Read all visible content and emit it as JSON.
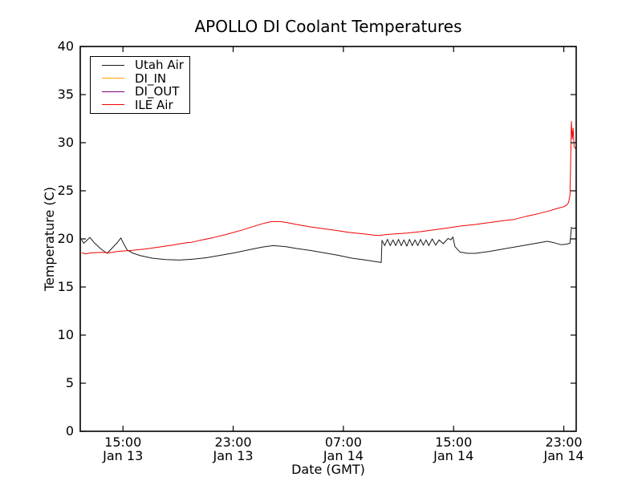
{
  "chart_data": {
    "type": "line",
    "title": "APOLLO DI Coolant Temperatures",
    "xlabel": "Date (GMT)",
    "ylabel": "Temperature (C)",
    "ylim": [
      0,
      40
    ],
    "yticks": [
      0,
      5,
      10,
      15,
      20,
      25,
      30,
      35,
      40
    ],
    "x_unit": "hours since Jan 13 12:00 GMT",
    "xlim": [
      -0.1,
      35.9
    ],
    "xticks": [
      {
        "t": 3,
        "time": "15:00",
        "date": "Jan 13"
      },
      {
        "t": 11,
        "time": "23:00",
        "date": "Jan 13"
      },
      {
        "t": 19,
        "time": "07:00",
        "date": "Jan 14"
      },
      {
        "t": 27,
        "time": "15:00",
        "date": "Jan 14"
      },
      {
        "t": 35,
        "time": "23:00",
        "date": "Jan 14"
      }
    ],
    "grid": false,
    "legend_position": "upper left",
    "series": [
      {
        "name": "Utah Air",
        "color": "#1a1a1a",
        "points": [
          [
            0,
            19.9
          ],
          [
            0.15,
            19.55
          ],
          [
            0.35,
            19.8
          ],
          [
            0.6,
            20.15
          ],
          [
            0.95,
            19.55
          ],
          [
            1.4,
            18.95
          ],
          [
            1.85,
            18.5
          ],
          [
            2.15,
            18.95
          ],
          [
            2.55,
            19.55
          ],
          [
            2.85,
            20.1
          ],
          [
            3.05,
            19.5
          ],
          [
            3.3,
            18.85
          ],
          [
            3.75,
            18.5
          ],
          [
            4.3,
            18.25
          ],
          [
            5.1,
            18.0
          ],
          [
            6.1,
            17.85
          ],
          [
            7.1,
            17.8
          ],
          [
            8.1,
            17.9
          ],
          [
            9.1,
            18.05
          ],
          [
            10.1,
            18.3
          ],
          [
            11.1,
            18.55
          ],
          [
            12.1,
            18.85
          ],
          [
            13.1,
            19.15
          ],
          [
            13.9,
            19.3
          ],
          [
            14.8,
            19.2
          ],
          [
            15.6,
            19.0
          ],
          [
            16.6,
            18.8
          ],
          [
            17.6,
            18.55
          ],
          [
            18.6,
            18.3
          ],
          [
            19.6,
            18.0
          ],
          [
            20.6,
            17.8
          ],
          [
            21.3,
            17.65
          ],
          [
            21.75,
            17.55
          ],
          [
            21.8,
            19.85
          ],
          [
            22.0,
            19.3
          ],
          [
            22.2,
            19.95
          ],
          [
            22.4,
            19.3
          ],
          [
            22.6,
            19.9
          ],
          [
            22.8,
            19.3
          ],
          [
            23.0,
            19.95
          ],
          [
            23.2,
            19.3
          ],
          [
            23.4,
            19.9
          ],
          [
            23.6,
            19.25
          ],
          [
            23.8,
            19.95
          ],
          [
            24.0,
            19.3
          ],
          [
            24.2,
            19.9
          ],
          [
            24.4,
            19.3
          ],
          [
            24.6,
            19.95
          ],
          [
            24.8,
            19.35
          ],
          [
            25.0,
            19.9
          ],
          [
            25.2,
            19.3
          ],
          [
            25.45,
            20.0
          ],
          [
            25.7,
            19.35
          ],
          [
            25.95,
            19.9
          ],
          [
            26.25,
            19.5
          ],
          [
            26.6,
            20.05
          ],
          [
            26.8,
            19.9
          ],
          [
            26.95,
            20.2
          ],
          [
            27.1,
            19.2
          ],
          [
            27.45,
            18.65
          ],
          [
            28.0,
            18.5
          ],
          [
            28.6,
            18.5
          ],
          [
            29.6,
            18.7
          ],
          [
            30.6,
            18.95
          ],
          [
            31.6,
            19.2
          ],
          [
            32.6,
            19.45
          ],
          [
            33.4,
            19.65
          ],
          [
            33.8,
            19.75
          ],
          [
            34.3,
            19.6
          ],
          [
            34.8,
            19.4
          ],
          [
            35.2,
            19.45
          ],
          [
            35.45,
            19.55
          ],
          [
            35.55,
            21.2
          ],
          [
            35.7,
            21.05
          ],
          [
            35.8,
            21.15
          ],
          [
            35.9,
            21.0
          ]
        ]
      },
      {
        "name": "DI_IN",
        "color": "#ffa500",
        "points": []
      },
      {
        "name": "DI_OUT",
        "color": "#800080",
        "points": []
      },
      {
        "name": "ILE Air",
        "color": "#f00000",
        "points": [
          [
            0,
            18.55
          ],
          [
            0.3,
            18.45
          ],
          [
            0.7,
            18.55
          ],
          [
            1.5,
            18.6
          ],
          [
            2.0,
            18.55
          ],
          [
            2.6,
            18.7
          ],
          [
            3.6,
            18.8
          ],
          [
            4.6,
            18.95
          ],
          [
            5.6,
            19.15
          ],
          [
            6.6,
            19.35
          ],
          [
            7.6,
            19.6
          ],
          [
            8.0,
            19.65
          ],
          [
            8.6,
            19.85
          ],
          [
            9.6,
            20.15
          ],
          [
            10.6,
            20.5
          ],
          [
            11.6,
            20.9
          ],
          [
            12.6,
            21.35
          ],
          [
            13.3,
            21.65
          ],
          [
            13.8,
            21.8
          ],
          [
            14.4,
            21.8
          ],
          [
            14.9,
            21.7
          ],
          [
            15.6,
            21.5
          ],
          [
            16.2,
            21.35
          ],
          [
            16.6,
            21.25
          ],
          [
            17.6,
            21.05
          ],
          [
            18.6,
            20.85
          ],
          [
            19.3,
            20.7
          ],
          [
            19.6,
            20.65
          ],
          [
            20.6,
            20.5
          ],
          [
            21.2,
            20.4
          ],
          [
            21.6,
            20.35
          ],
          [
            22.1,
            20.45
          ],
          [
            22.6,
            20.5
          ],
          [
            23.6,
            20.6
          ],
          [
            24.6,
            20.75
          ],
          [
            25.6,
            20.95
          ],
          [
            26.6,
            21.15
          ],
          [
            27.6,
            21.35
          ],
          [
            28.6,
            21.5
          ],
          [
            29.3,
            21.65
          ],
          [
            29.6,
            21.7
          ],
          [
            30.6,
            21.9
          ],
          [
            31.3,
            22.0
          ],
          [
            31.6,
            22.1
          ],
          [
            32.3,
            22.35
          ],
          [
            33.1,
            22.6
          ],
          [
            33.9,
            22.9
          ],
          [
            34.6,
            23.2
          ],
          [
            35.0,
            23.35
          ],
          [
            35.2,
            23.5
          ],
          [
            35.35,
            23.8
          ],
          [
            35.45,
            24.6
          ],
          [
            35.5,
            28.0
          ],
          [
            35.55,
            32.2
          ],
          [
            35.62,
            30.4
          ],
          [
            35.68,
            31.5
          ],
          [
            35.75,
            29.6
          ],
          [
            35.85,
            29.4
          ],
          [
            35.9,
            29.55
          ]
        ]
      }
    ]
  }
}
